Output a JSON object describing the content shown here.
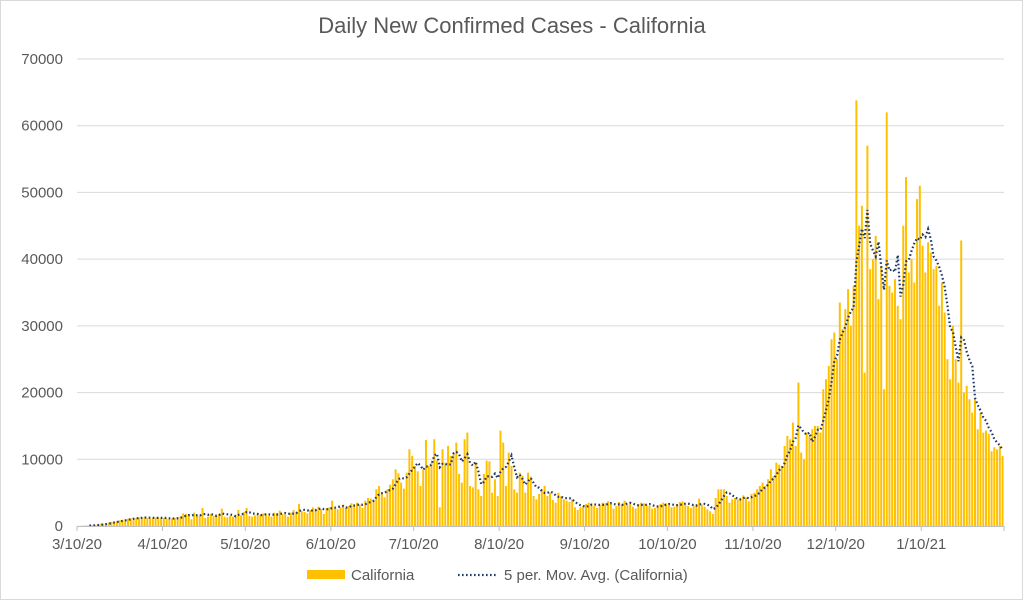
{
  "chart_data": {
    "type": "bar",
    "title": "Daily New Confirmed Cases - California",
    "xlabel": "",
    "ylabel": "",
    "x_start": "3/10/20",
    "x_end": "2/8/21",
    "x_ticks": [
      "3/10/20",
      "4/10/20",
      "5/10/20",
      "6/10/20",
      "7/10/20",
      "8/10/20",
      "9/10/20",
      "10/10/20",
      "11/10/20",
      "12/10/20",
      "1/10/21"
    ],
    "x_tick_days": [
      0,
      31,
      61,
      92,
      122,
      153,
      184,
      214,
      245,
      275,
      306
    ],
    "ylim": [
      0,
      70000
    ],
    "y_ticks": [
      0,
      10000,
      20000,
      30000,
      40000,
      50000,
      60000,
      70000
    ],
    "grid": true,
    "legend_position": "bottom",
    "series": [
      {
        "name": "California",
        "type": "bar",
        "color": "#FFC000",
        "values": [
          30,
          40,
          60,
          90,
          100,
          130,
          180,
          200,
          280,
          350,
          420,
          500,
          600,
          700,
          750,
          850,
          900,
          1000,
          1100,
          1150,
          1250,
          1200,
          1300,
          1250,
          1350,
          1200,
          1100,
          1250,
          1250,
          1300,
          1150,
          1200,
          1100,
          1000,
          1150,
          1200,
          1350,
          1400,
          1900,
          1800,
          1700,
          1000,
          2000,
          1500,
          1600,
          2700,
          1200,
          1400,
          1800,
          1500,
          1700,
          1800,
          2600,
          1400,
          1300,
          1500,
          1400,
          1700,
          2400,
          1600,
          2100,
          2700,
          1500,
          1400,
          1600,
          1800,
          1700,
          1900,
          1800,
          1500,
          1400,
          2000,
          1900,
          2300,
          1800,
          1700,
          1400,
          2000,
          2400,
          2100,
          3300,
          2200,
          2100,
          1900,
          2400,
          2800,
          2600,
          2900,
          2500,
          1800,
          2700,
          2800,
          3800,
          2600,
          2500,
          2800,
          3200,
          2700,
          3000,
          3400,
          3100,
          3500,
          3200,
          2700,
          3800,
          4200,
          4100,
          4000,
          5500,
          6000,
          5000,
          4300,
          5500,
          6200,
          7000,
          8500,
          7900,
          6500,
          5600,
          8000,
          11500,
          10500,
          9000,
          8200,
          6000,
          8500,
          12900,
          9000,
          9500,
          13000,
          9800,
          2800,
          11500,
          9500,
          12000,
          10500,
          11000,
          12500,
          7800,
          6500,
          13000,
          14000,
          6000,
          5800,
          9500,
          5500,
          4500,
          7800,
          9800,
          9700,
          5000,
          7000,
          4500,
          14300,
          12500,
          6000,
          11000,
          9000,
          5500,
          5000,
          8000,
          7500,
          5000,
          8000,
          7400,
          4500,
          4000,
          4800,
          5500,
          6000,
          4500,
          5000,
          3900,
          3500,
          5000,
          4500,
          4000,
          3800,
          3600,
          4000,
          2800,
          2400,
          2800,
          3000,
          3300,
          3500,
          3400,
          3000,
          2700,
          3200,
          3500,
          3400,
          3700,
          3300,
          2600,
          3000,
          3600,
          3300,
          3800,
          3200,
          3500,
          2900,
          2600,
          3300,
          3500,
          3400,
          3200,
          3000,
          2600,
          2700,
          3100,
          3300,
          3500,
          3400,
          3200,
          2800,
          2900,
          3300,
          3600,
          3700,
          3200,
          3000,
          2700,
          3100,
          3300,
          4100,
          3200,
          2900,
          2500,
          2200,
          1800,
          4200,
          5500,
          5500,
          5500,
          4500,
          3500,
          4000,
          4200,
          4000,
          4200,
          4600,
          4300,
          3700,
          4800,
          5000,
          5500,
          6000,
          6500,
          6000,
          7000,
          8500,
          7500,
          9500,
          9200,
          9000,
          12000,
          13500,
          13000,
          15500,
          12000,
          21500,
          11000,
          10000,
          14000,
          13500,
          14500,
          15000,
          15000,
          14000,
          20500,
          22000,
          24000,
          28000,
          29000,
          25000,
          33500,
          29500,
          32500,
          35500,
          30000,
          36000,
          63800,
          45000,
          48000,
          23000,
          57000,
          38500,
          40000,
          43500,
          34000,
          39000,
          20500,
          62000,
          36000,
          35000,
          37000,
          33000,
          31000,
          45000,
          52300,
          38000,
          40000,
          36500,
          49000,
          51000,
          42000,
          38000,
          42500,
          41000,
          38500,
          39000,
          33000,
          36500,
          32000,
          25000,
          22000,
          30000,
          25000,
          21500,
          42800,
          20000,
          21000,
          19000,
          17000,
          19000,
          14500,
          17000,
          14000,
          14300,
          13800,
          11200,
          11800,
          11500,
          12000,
          10500
        ]
      },
      {
        "name": "5 per. Mov. Avg. (California)",
        "type": "line",
        "color": "#203864",
        "style": "dotted",
        "period": 5
      }
    ]
  }
}
